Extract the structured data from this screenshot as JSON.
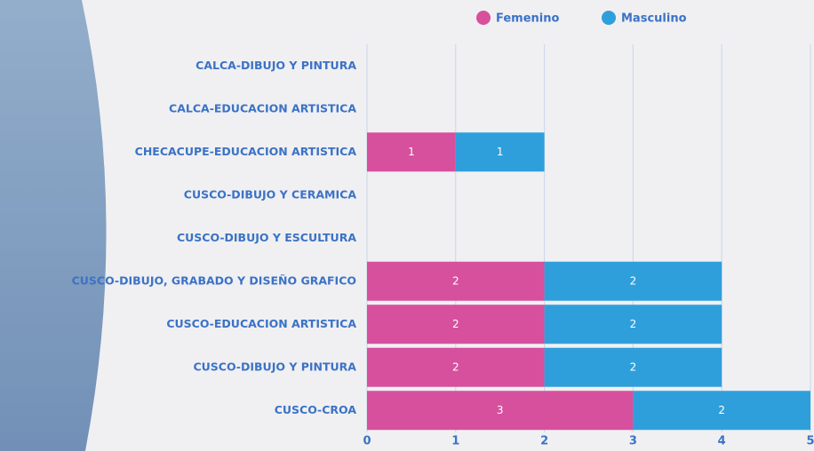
{
  "chart_data": {
    "type": "bar",
    "orientation": "horizontal",
    "stacked": true,
    "categories": [
      "CALCA-DIBUJO Y PINTURA",
      "CALCA-EDUCACION ARTISTICA",
      "CHECACUPE-EDUCACION ARTISTICA",
      "CUSCO-DIBUJO Y CERAMICA",
      "CUSCO-DIBUJO Y ESCULTURA",
      "CUSCO-DIBUJO, GRABADO Y DISEÑO GRAFICO",
      "CUSCO-EDUCACION ARTISTICA",
      "CUSCO-DIBUJO Y PINTURA",
      "CUSCO-CROA"
    ],
    "series": [
      {
        "name": "Femenino",
        "color": "#d6509d",
        "values": [
          0,
          0,
          1,
          0,
          0,
          2,
          2,
          2,
          3
        ]
      },
      {
        "name": "Masculino",
        "color": "#2f9fdb",
        "values": [
          0,
          0,
          1,
          0,
          0,
          2,
          2,
          2,
          2
        ]
      }
    ],
    "xlim": [
      0,
      5
    ],
    "xticks": [
      0,
      1,
      2,
      3,
      4,
      5
    ],
    "grid": true,
    "legend": "top"
  }
}
